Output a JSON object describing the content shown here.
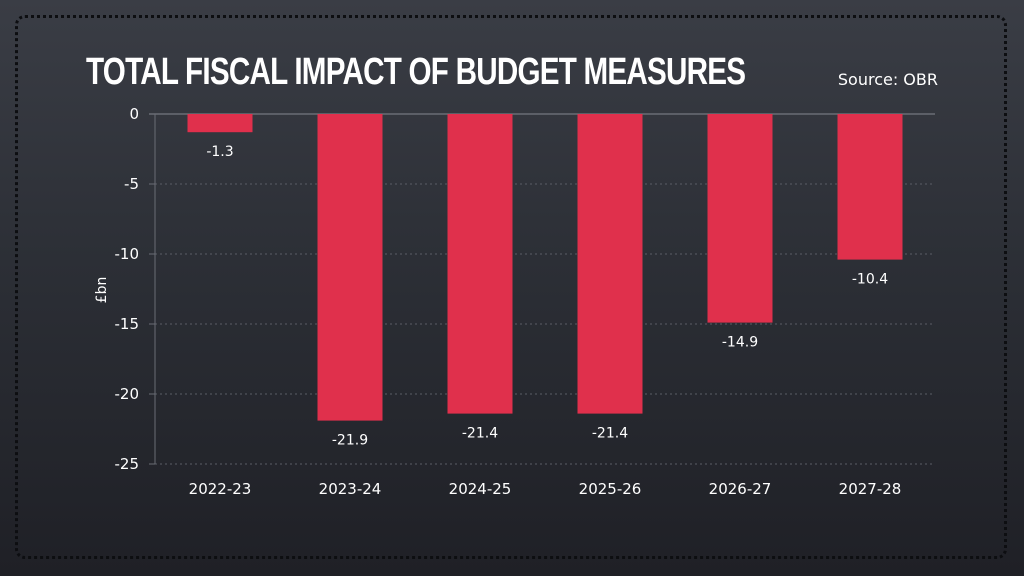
{
  "header": {
    "title": "TOTAL FISCAL IMPACT OF BUDGET MEASURES",
    "source": "Source: OBR"
  },
  "colors": {
    "bar": "#e0304c",
    "gridline": "#5a5d66",
    "axis": "#6a6d75",
    "text": "#ffffff"
  },
  "chart_data": {
    "type": "bar",
    "title": "Total fiscal impact of budget measures",
    "xlabel": "",
    "ylabel": "£bn",
    "categories": [
      "2022-23",
      "2023-24",
      "2024-25",
      "2025-26",
      "2026-27",
      "2027-28"
    ],
    "values": [
      -1.3,
      -21.9,
      -21.4,
      -21.4,
      -14.9,
      -10.4
    ],
    "data_labels": [
      "-1.3",
      "-21.9",
      "-21.4",
      "-21.4",
      "-14.9",
      "-10.4"
    ],
    "ylim": [
      -25,
      0
    ],
    "yticks": [
      0,
      -5,
      -10,
      -15,
      -20,
      -25
    ],
    "ytick_labels": [
      "0",
      "-5",
      "-10",
      "-15",
      "-20",
      "-25"
    ],
    "grid": true,
    "legend": "none",
    "source": "Source: OBR"
  }
}
